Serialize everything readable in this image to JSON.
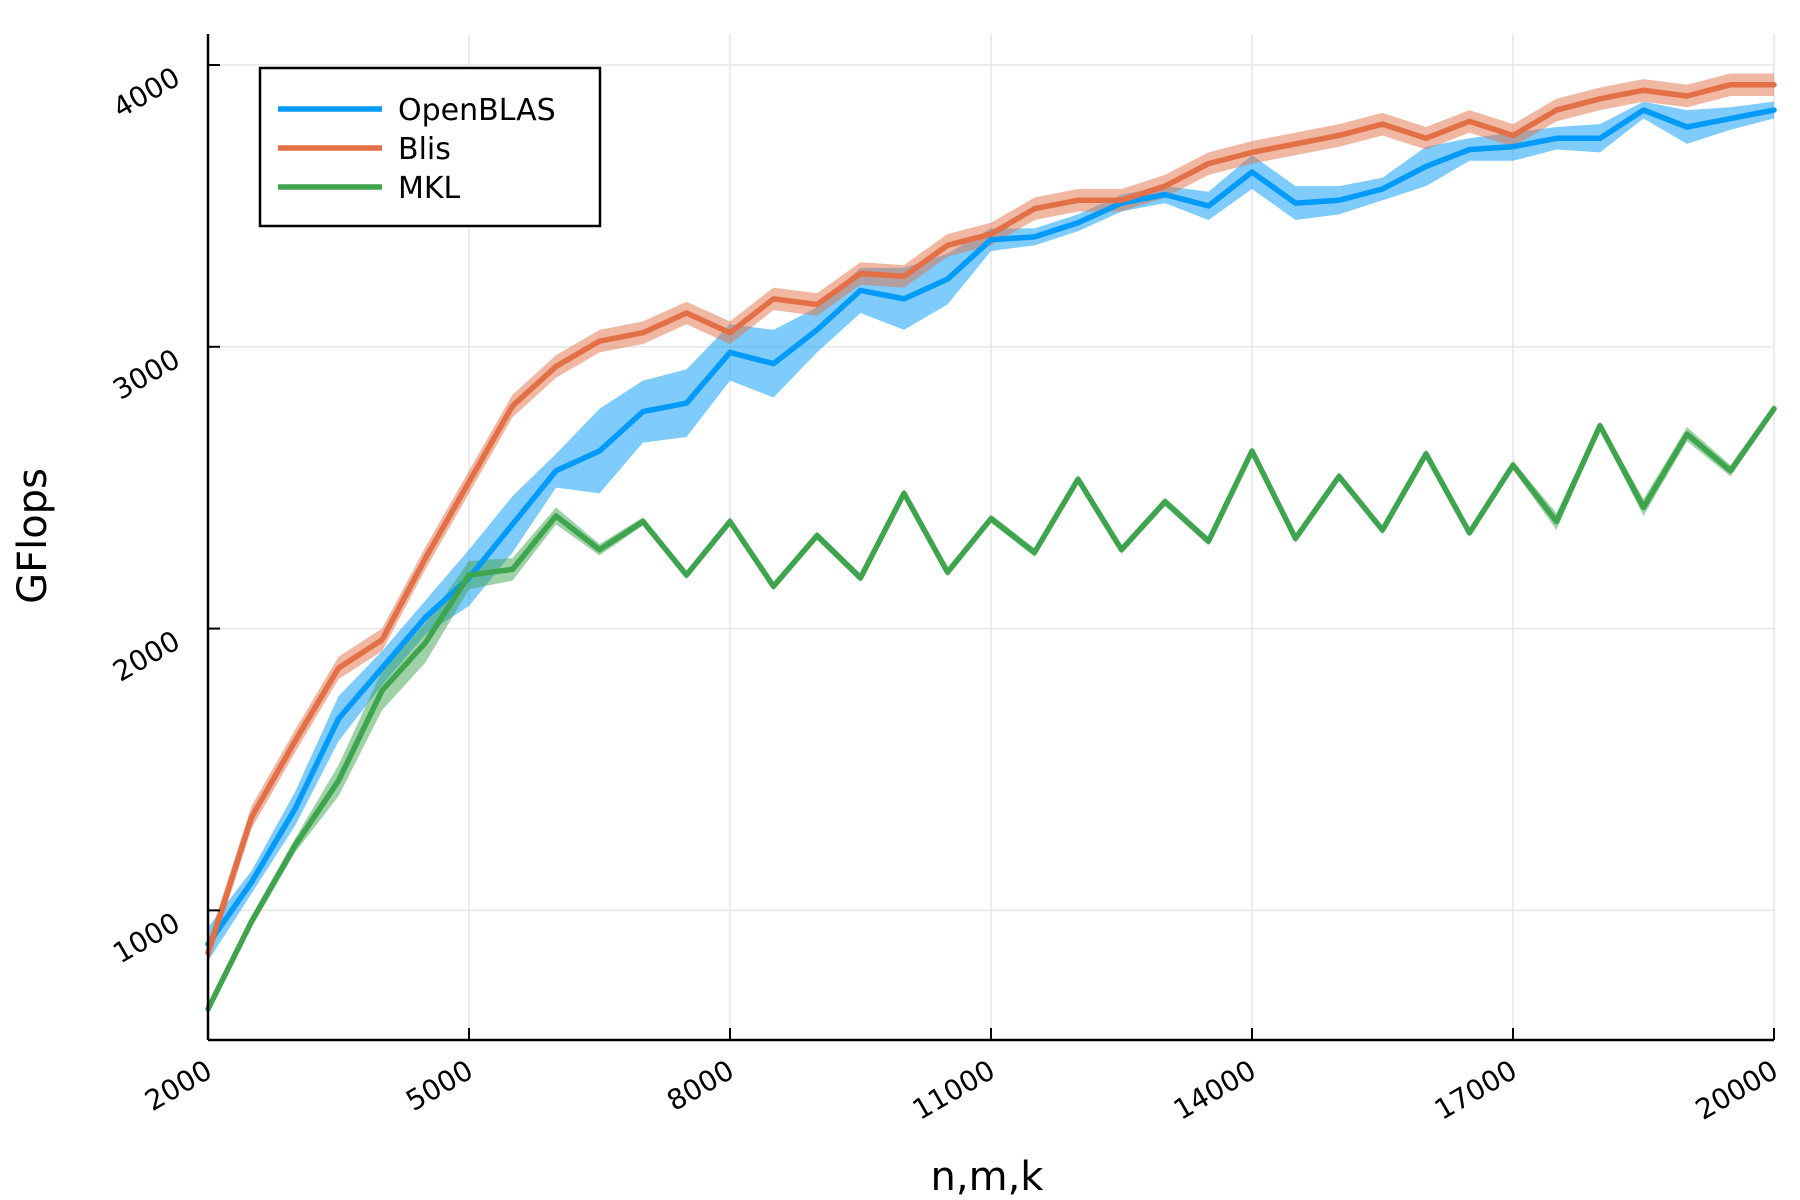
{
  "chart_data": {
    "type": "line",
    "title": "",
    "xlabel": "n,m,k",
    "ylabel": "GFlops",
    "xlim": [
      2000,
      20000
    ],
    "ylim": [
      540,
      4110
    ],
    "x_ticks": [
      2000,
      5000,
      8000,
      11000,
      14000,
      17000,
      20000
    ],
    "y_ticks": [
      1000,
      2000,
      3000,
      4000
    ],
    "x_tick_labels": [
      "2000",
      "5000",
      "8000",
      "11000",
      "14000",
      "17000",
      "20000"
    ],
    "y_tick_labels": [
      "1000",
      "2000",
      "3000",
      "4000"
    ],
    "grid": true,
    "legend_position": "top-left",
    "x": [
      2000,
      2500,
      3000,
      3500,
      4000,
      4500,
      5000,
      5500,
      6000,
      6500,
      7000,
      7500,
      8000,
      8500,
      9000,
      9500,
      10000,
      10500,
      11000,
      11500,
      12000,
      12500,
      13000,
      13500,
      14000,
      14500,
      15000,
      15500,
      16000,
      16500,
      17000,
      17500,
      18000,
      18500,
      19000,
      19500,
      20000
    ],
    "series": [
      {
        "name": "OpenBLAS",
        "color": "#009AFA",
        "values": [
          880,
          1100,
          1360,
          1680,
          1860,
          2040,
          2180,
          2370,
          2560,
          2630,
          2770,
          2800,
          2980,
          2940,
          3060,
          3200,
          3170,
          3240,
          3380,
          3390,
          3440,
          3510,
          3540,
          3500,
          3620,
          3510,
          3520,
          3560,
          3640,
          3700,
          3710,
          3740,
          3740,
          3840,
          3780,
          3810,
          3840
        ],
        "band": [
          60,
          40,
          60,
          80,
          60,
          60,
          100,
          100,
          60,
          150,
          110,
          120,
          100,
          120,
          80,
          80,
          110,
          90,
          40,
          30,
          30,
          30,
          30,
          50,
          60,
          60,
          50,
          40,
          70,
          40,
          50,
          40,
          50,
          30,
          60,
          40,
          30
        ]
      },
      {
        "name": "Blis",
        "color": "#E26F46",
        "values": [
          850,
          1330,
          1600,
          1860,
          1960,
          2250,
          2520,
          2790,
          2930,
          3020,
          3050,
          3120,
          3050,
          3170,
          3150,
          3260,
          3250,
          3360,
          3400,
          3490,
          3520,
          3520,
          3570,
          3650,
          3690,
          3720,
          3750,
          3790,
          3740,
          3800,
          3750,
          3840,
          3880,
          3910,
          3890,
          3930,
          3930
        ]
      },
      {
        "name": "MKL",
        "color": "#3EA44E",
        "values": [
          650,
          960,
          1230,
          1460,
          1780,
          1950,
          2190,
          2210,
          2400,
          2280,
          2380,
          2190,
          2380,
          2150,
          2330,
          2180,
          2480,
          2200,
          2390,
          2270,
          2530,
          2280,
          2450,
          2310,
          2630,
          2320,
          2540,
          2350,
          2620,
          2340,
          2580,
          2380,
          2720,
          2430,
          2690,
          2560,
          2780
        ],
        "band": [
          15,
          20,
          25,
          55,
          70,
          70,
          50,
          40,
          30,
          20,
          15,
          15,
          15,
          15,
          15,
          15,
          15,
          15,
          15,
          15,
          15,
          15,
          15,
          15,
          15,
          15,
          15,
          15,
          15,
          15,
          15,
          30,
          15,
          30,
          25,
          20,
          15
        ]
      }
    ]
  }
}
